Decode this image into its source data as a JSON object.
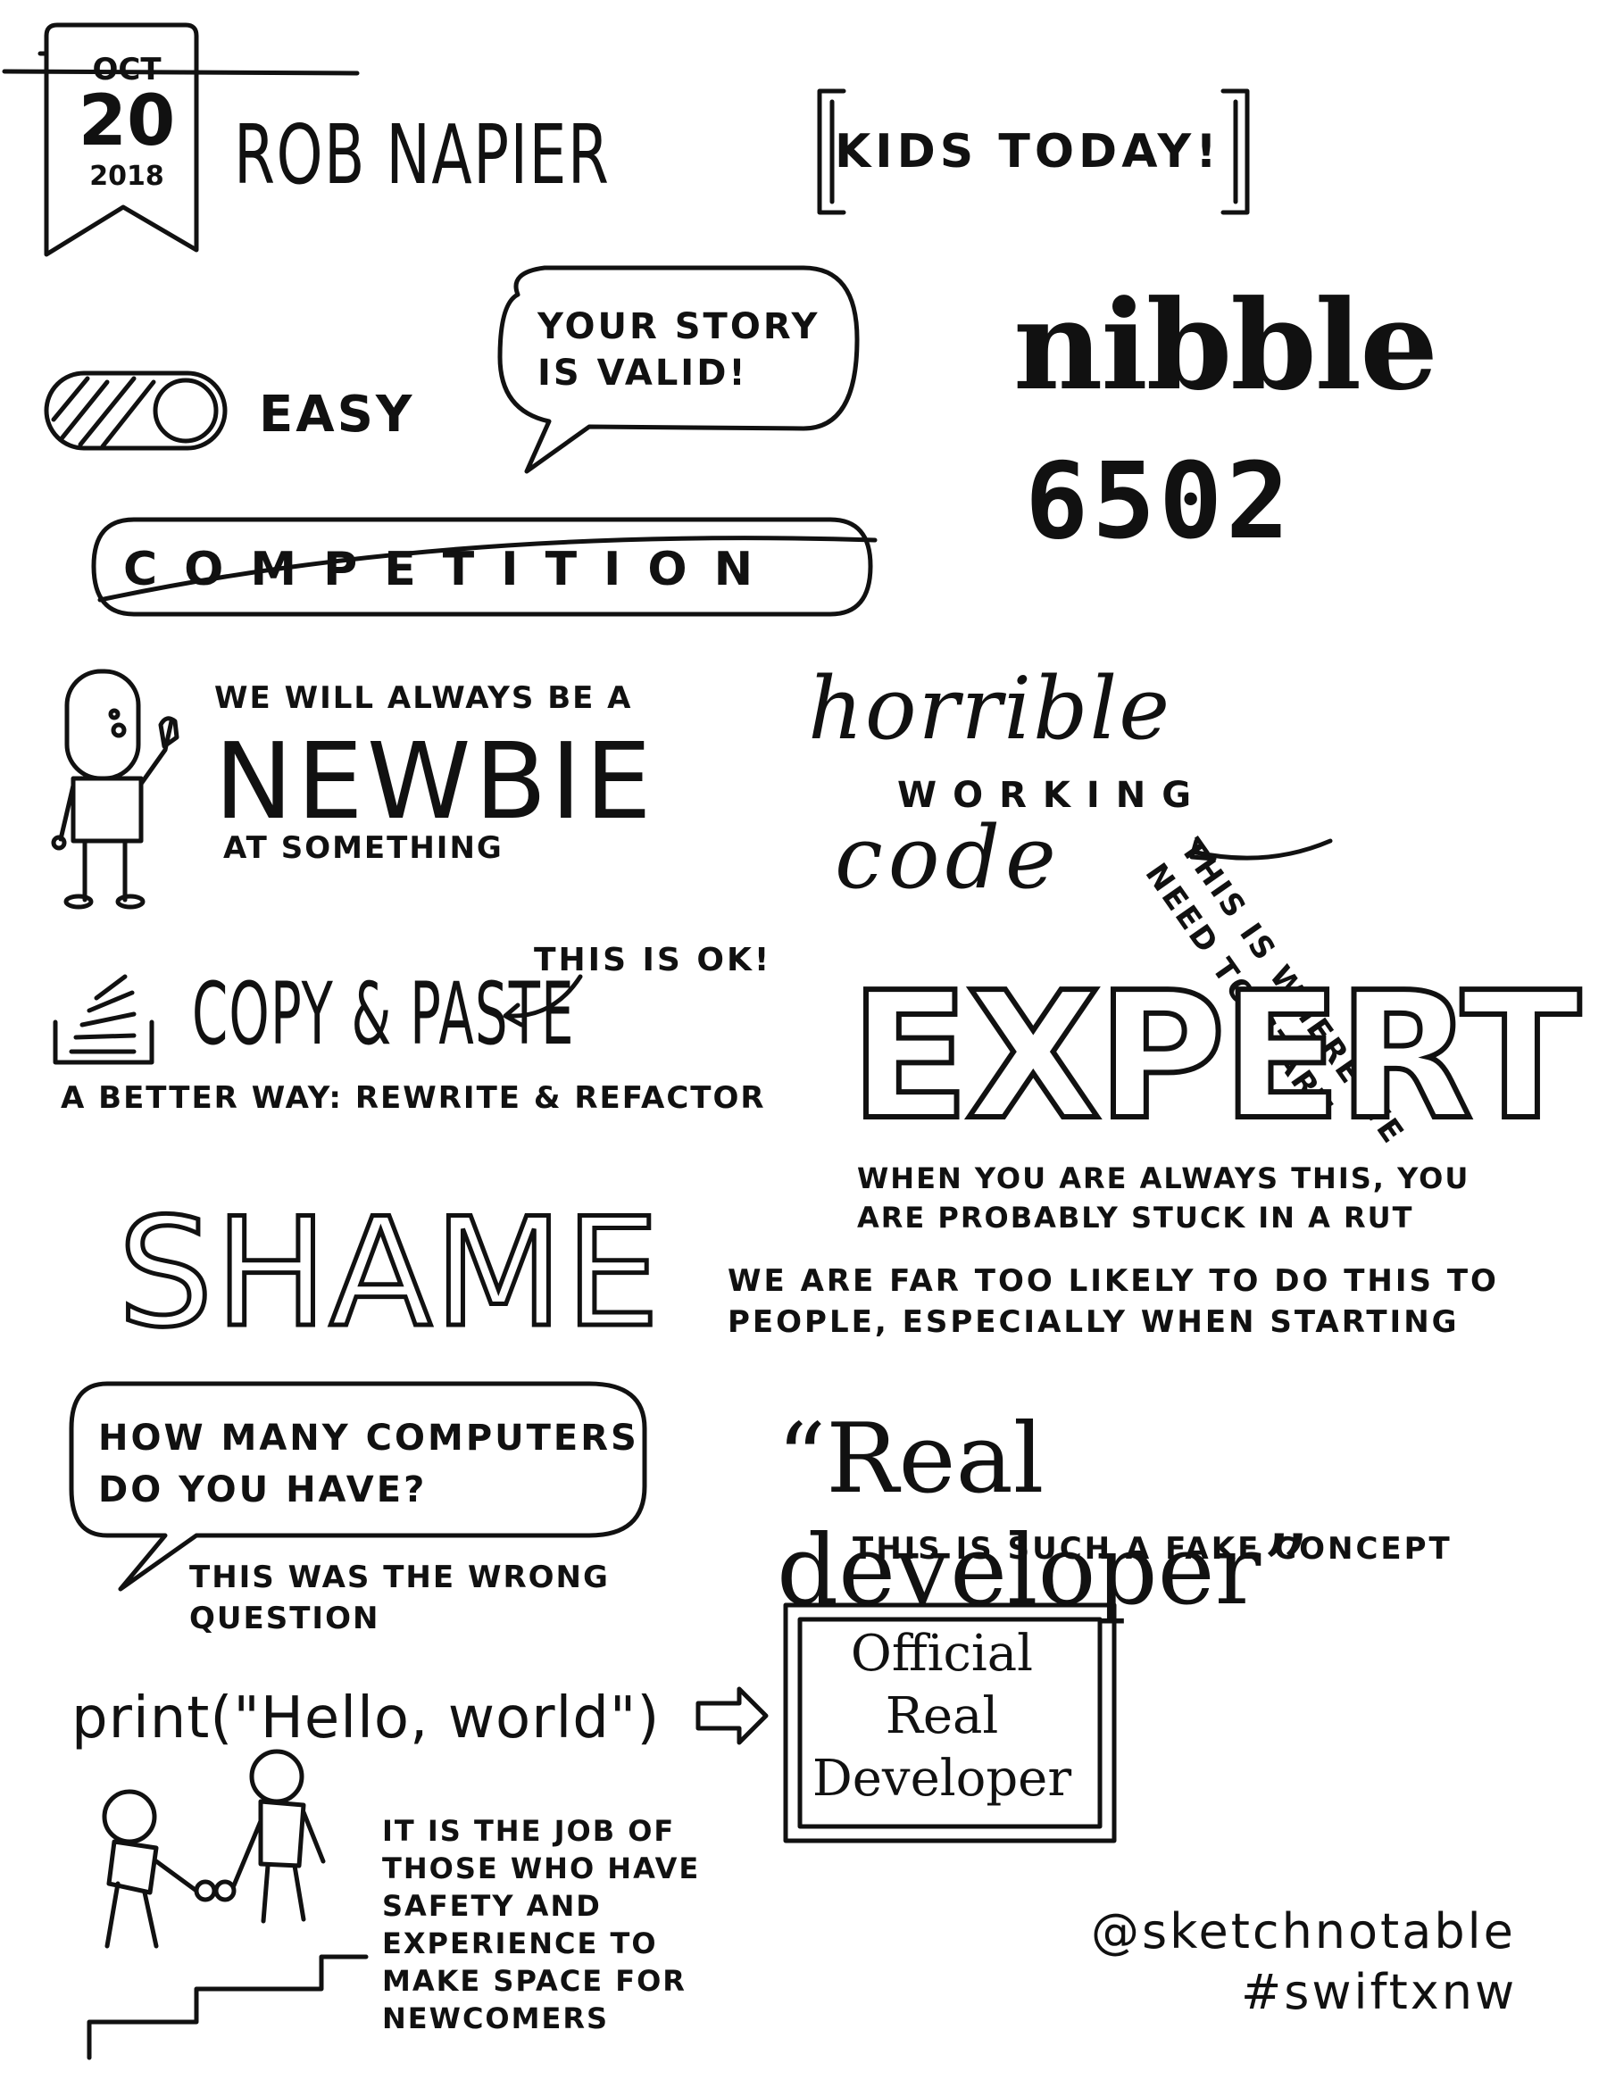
{
  "header": {
    "date_month": "OCT",
    "date_day": "20",
    "date_year": "2018",
    "speaker": "ROB NAPIER",
    "title": "KIDS TODAY!"
  },
  "toggle": {
    "label": "EASY"
  },
  "bubble_story": {
    "text": "YOUR STORY IS VALID!"
  },
  "nibble": {
    "word": "nibble",
    "chip": "6502"
  },
  "competition": {
    "word": "COMPETITION"
  },
  "newbie": {
    "line_top": "WE WILL ALWAYS BE A",
    "big": "NEWBIE",
    "line_bottom": "AT SOMETHING"
  },
  "horrible_code": {
    "horrible": "horrible",
    "working": "WORKING",
    "code": "code",
    "note": "THIS IS WHERE WE NEED TO START"
  },
  "copy_paste": {
    "title": "COPY & PASTE",
    "note": "THIS IS OK!",
    "better": "A BETTER WAY: REWRITE & REFACTOR"
  },
  "expert": {
    "word": "EXPERT",
    "note": "WHEN YOU ARE ALWAYS THIS, YOU ARE PROBABLY STUCK IN A RUT"
  },
  "shame": {
    "word": "SHAME",
    "note": "WE ARE FAR TOO LIKELY TO DO THIS TO PEOPLE, ESPECIALLY WHEN STARTING"
  },
  "computers": {
    "question": "HOW MANY COMPUTERS DO YOU HAVE?",
    "note": "THIS WAS THE WRONG QUESTION"
  },
  "real_developer": {
    "quote": "“Real developer”",
    "note": "THIS IS SUCH A FAKE CONCEPT"
  },
  "hello": {
    "code": "print(\"Hello, world\")",
    "cert_line1": "Official",
    "cert_line2": "Real",
    "cert_line3": "Developer"
  },
  "newcomers": {
    "note": "IT IS THE JOB OF THOSE WHO HAVE SAFETY AND EXPERIENCE TO MAKE SPACE FOR NEWCOMERS"
  },
  "credits": {
    "handle": "@sketchnotable",
    "hashtag": "#swiftxnw"
  }
}
